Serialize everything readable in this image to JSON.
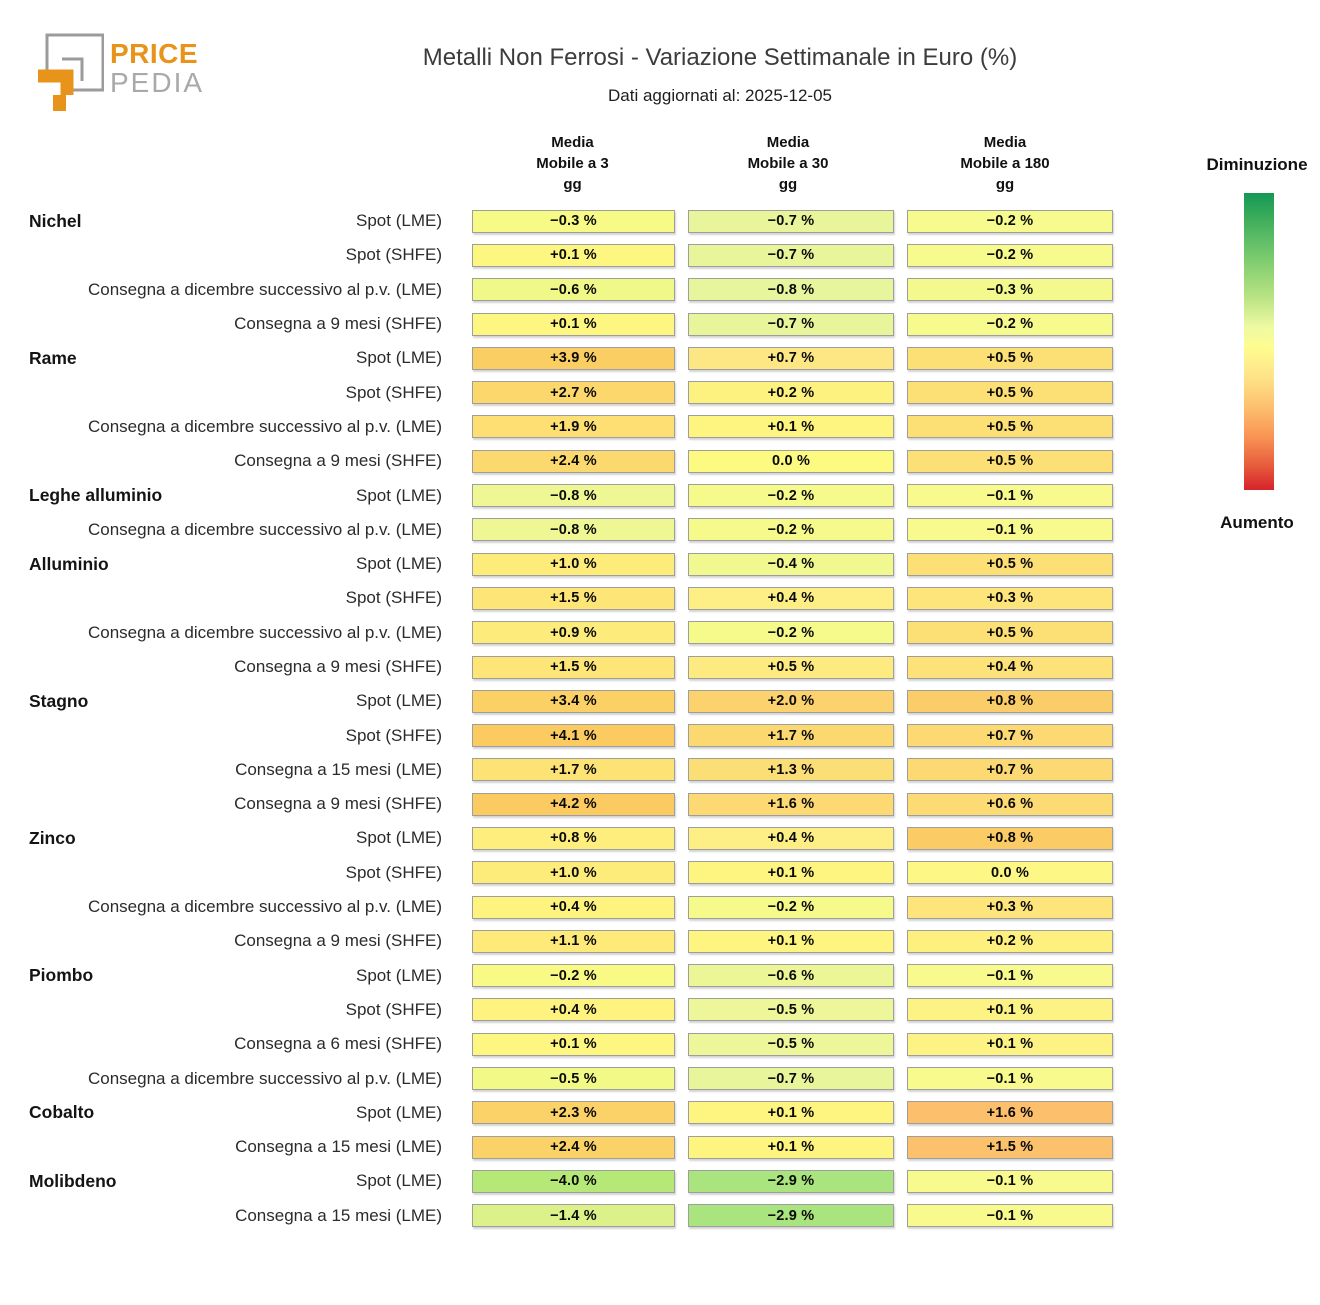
{
  "logo": {
    "brand_top": "PRICE",
    "brand_bottom": "PEDIA",
    "orange": "#E8941A",
    "gray": "#9b9b9b"
  },
  "header": {
    "title": "Metalli Non Ferrosi - Variazione Settimanale in Euro (%)",
    "subtitle": "Dati aggiornati al: 2025-12-05"
  },
  "column_headers": [
    {
      "lines": [
        "Media",
        "Mobile a 3",
        "gg"
      ]
    },
    {
      "lines": [
        "Media",
        "Mobile a 30",
        "gg"
      ]
    },
    {
      "lines": [
        "Media",
        "Mobile a 180",
        "gg"
      ]
    }
  ],
  "legend": {
    "top_label": "Diminuzione",
    "bottom_label": "Aumento",
    "gradient": [
      "#149855 0%",
      "#3fae5c 9%",
      "#7bcb6e 22%",
      "#b9e383 35%",
      "#eef9a2 45%",
      "#fefc8f 52%",
      "#fee388 62%",
      "#fdc06e 72%",
      "#f99455 82%",
      "#e8613e 91%",
      "#d7222b 100%"
    ]
  },
  "chart_data": {
    "type": "heatmap",
    "title": "Metalli Non Ferrosi - Variazione Settimanale in Euro (%)",
    "subtitle": "Dati aggiornati al: 2025-12-05",
    "unit": "%",
    "value_format": "signed percent, one decimal, unicode minus, space before %",
    "columns": [
      "Media Mobile a 3 gg",
      "Media Mobile a 30 gg",
      "Media Mobile a 180 gg"
    ],
    "color_semantics": {
      "green": "Diminuzione",
      "red": "Aumento",
      "mid": "#ffffbf"
    },
    "rows": [
      {
        "group": "Nichel",
        "label": "Spot (LME)",
        "values": [
          -0.3,
          -0.7,
          -0.2
        ],
        "colors": [
          "#f7fa85",
          "#e9f59b",
          "#f7fa8c"
        ]
      },
      {
        "group": null,
        "label": "Spot (SHFE)",
        "values": [
          0.1,
          -0.7,
          -0.2
        ],
        "colors": [
          "#fdf680",
          "#e9f59b",
          "#f7fa8c"
        ]
      },
      {
        "group": null,
        "label": "Consegna a dicembre successivo al p.v. (LME)",
        "values": [
          -0.6,
          -0.8,
          -0.3
        ],
        "colors": [
          "#f0f887",
          "#e7f59c",
          "#f4f98d"
        ]
      },
      {
        "group": null,
        "label": "Consegna a 9 mesi (SHFE)",
        "values": [
          0.1,
          -0.7,
          -0.2
        ],
        "colors": [
          "#fdf680",
          "#e9f59b",
          "#f7fa8c"
        ]
      },
      {
        "group": "Rame",
        "label": "Spot (LME)",
        "values": [
          3.9,
          0.7,
          0.5
        ],
        "colors": [
          "#fbce63",
          "#fde784",
          "#fcdf75"
        ]
      },
      {
        "group": null,
        "label": "Spot (SHFE)",
        "values": [
          2.7,
          0.2,
          0.5
        ],
        "colors": [
          "#fcd76c",
          "#fdf280",
          "#fcdf75"
        ]
      },
      {
        "group": null,
        "label": "Consegna a dicembre successivo al p.v. (LME)",
        "values": [
          1.9,
          0.1,
          0.5
        ],
        "colors": [
          "#fddf73",
          "#fdf580",
          "#fcdf75"
        ]
      },
      {
        "group": null,
        "label": "Consegna a 9 mesi (SHFE)",
        "values": [
          2.4,
          0.0,
          0.5
        ],
        "colors": [
          "#fcd96e",
          "#fdfa82",
          "#fcdf75"
        ]
      },
      {
        "group": "Leghe alluminio",
        "label": "Spot (LME)",
        "values": [
          -0.8,
          -0.2,
          -0.1
        ],
        "colors": [
          "#eef794",
          "#f6fa8a",
          "#f9fa8e"
        ]
      },
      {
        "group": null,
        "label": "Consegna a dicembre successivo al p.v. (LME)",
        "values": [
          -0.8,
          -0.2,
          -0.1
        ],
        "colors": [
          "#eef794",
          "#f6fa8a",
          "#f9fa8e"
        ]
      },
      {
        "group": "Alluminio",
        "label": "Spot (LME)",
        "values": [
          1.0,
          -0.4,
          0.5
        ],
        "colors": [
          "#fdeb7a",
          "#f0f88f",
          "#fcdf75"
        ]
      },
      {
        "group": null,
        "label": "Spot (SHFE)",
        "values": [
          1.5,
          0.4,
          0.3
        ],
        "colors": [
          "#fde577",
          "#fdee85",
          "#fde47b"
        ]
      },
      {
        "group": null,
        "label": "Consegna a dicembre successivo al p.v. (LME)",
        "values": [
          0.9,
          -0.2,
          0.5
        ],
        "colors": [
          "#fdec7b",
          "#f6fa8a",
          "#fcdf75"
        ]
      },
      {
        "group": null,
        "label": "Consegna a 9 mesi (SHFE)",
        "values": [
          1.5,
          0.5,
          0.4
        ],
        "colors": [
          "#fde577",
          "#fdeb82",
          "#fde279"
        ]
      },
      {
        "group": "Stagno",
        "label": "Spot (LME)",
        "values": [
          3.4,
          2.0,
          0.8
        ],
        "colors": [
          "#fbd166",
          "#fbd26d",
          "#fbcd68"
        ]
      },
      {
        "group": null,
        "label": "Spot (SHFE)",
        "values": [
          4.1,
          1.7,
          0.7
        ],
        "colors": [
          "#fbcb61",
          "#fcd871",
          "#fcd973"
        ]
      },
      {
        "group": null,
        "label": "Consegna a 15 mesi (LME)",
        "values": [
          1.7,
          1.3,
          0.7
        ],
        "colors": [
          "#fde276",
          "#fcde77",
          "#fcd973"
        ]
      },
      {
        "group": null,
        "label": "Consegna a 9 mesi (SHFE)",
        "values": [
          4.2,
          1.6,
          0.6
        ],
        "colors": [
          "#fbca60",
          "#fcd972",
          "#fcdb74"
        ]
      },
      {
        "group": "Zinco",
        "label": "Spot (LME)",
        "values": [
          0.8,
          0.4,
          0.8
        ],
        "colors": [
          "#fdee7d",
          "#fdee85",
          "#fbcc66"
        ]
      },
      {
        "group": null,
        "label": "Spot (SHFE)",
        "values": [
          1.0,
          0.1,
          0.0
        ],
        "colors": [
          "#fdeb7a",
          "#fdf580",
          "#fdf886"
        ]
      },
      {
        "group": null,
        "label": "Consegna a dicembre successivo al p.v. (LME)",
        "values": [
          0.4,
          -0.2,
          0.3
        ],
        "colors": [
          "#fdf37e",
          "#f6fa8a",
          "#fde47b"
        ]
      },
      {
        "group": null,
        "label": "Consegna a 9 mesi (SHFE)",
        "values": [
          1.1,
          0.1,
          0.2
        ],
        "colors": [
          "#fdea79",
          "#fdf580",
          "#fdf07f"
        ]
      },
      {
        "group": "Piombo",
        "label": "Spot (LME)",
        "values": [
          -0.2,
          -0.6,
          -0.1
        ],
        "colors": [
          "#f8fa85",
          "#ecf697",
          "#f9fa8e"
        ]
      },
      {
        "group": null,
        "label": "Spot (SHFE)",
        "values": [
          0.4,
          -0.5,
          0.1
        ],
        "colors": [
          "#fdf37e",
          "#eef69a",
          "#fdf385"
        ]
      },
      {
        "group": null,
        "label": "Consegna a 6 mesi (SHFE)",
        "values": [
          0.1,
          -0.5,
          0.1
        ],
        "colors": [
          "#fdf680",
          "#eef69a",
          "#fdf385"
        ]
      },
      {
        "group": null,
        "label": "Consegna a dicembre successivo al p.v. (LME)",
        "values": [
          -0.5,
          -0.7,
          -0.1
        ],
        "colors": [
          "#f2f987",
          "#e9f59b",
          "#f9fa8e"
        ]
      },
      {
        "group": "Cobalto",
        "label": "Spot (LME)",
        "values": [
          2.3,
          0.1,
          1.6
        ],
        "colors": [
          "#fbd268",
          "#fdf580",
          "#fcbf6b"
        ]
      },
      {
        "group": null,
        "label": "Consegna a 15 mesi (LME)",
        "values": [
          2.4,
          0.1,
          1.5
        ],
        "colors": [
          "#fbd267",
          "#fdf580",
          "#fcc16c"
        ]
      },
      {
        "group": "Molibdeno",
        "label": "Spot (LME)",
        "values": [
          -4.0,
          -2.9,
          -0.1
        ],
        "colors": [
          "#b6e878",
          "#a9e47e",
          "#f9fa8e"
        ]
      },
      {
        "group": null,
        "label": "Consegna a 15 mesi (LME)",
        "values": [
          -1.4,
          -2.9,
          -0.1
        ],
        "colors": [
          "#dcf189",
          "#a9e47e",
          "#f9fa8e"
        ]
      }
    ]
  }
}
